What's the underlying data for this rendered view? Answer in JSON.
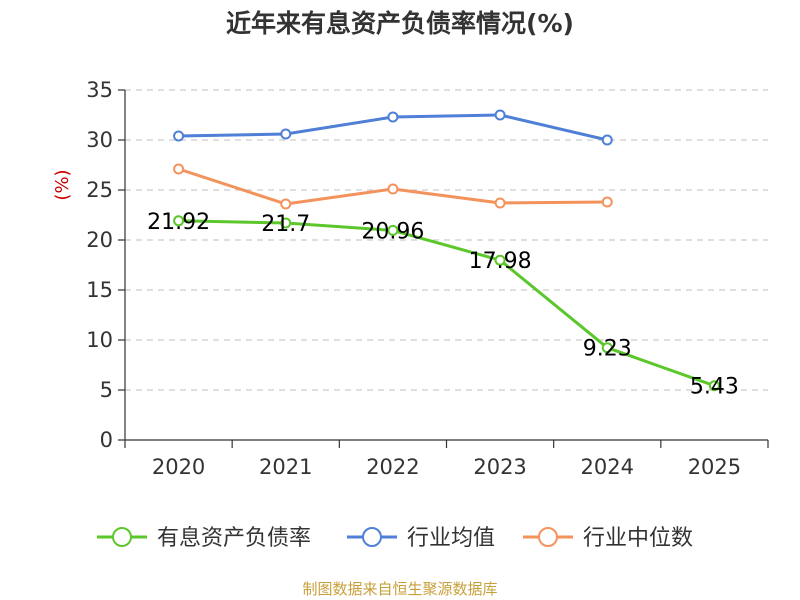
{
  "chart_data": {
    "type": "line",
    "title": "近年来有息资产负债率情况(%)",
    "ylabel": "(%)",
    "xlabel": "",
    "categories": [
      "2020",
      "2021",
      "2022",
      "2023",
      "2024",
      "2025"
    ],
    "ylim": [
      0,
      35
    ],
    "yticks": [
      0,
      5,
      10,
      15,
      20,
      25,
      30,
      35
    ],
    "grid": true,
    "legend_position": "bottom",
    "series": [
      {
        "name": "有息资产负债率",
        "color": "#5cc72b",
        "values": [
          21.92,
          21.7,
          20.96,
          17.98,
          9.23,
          5.43
        ],
        "show_labels": true
      },
      {
        "name": "行业均值",
        "color": "#4f7fd6",
        "values": [
          30.4,
          30.6,
          32.3,
          32.5,
          30.0,
          null
        ],
        "show_labels": false
      },
      {
        "name": "行业中位数",
        "color": "#f4925c",
        "values": [
          27.1,
          23.6,
          25.1,
          23.7,
          23.8,
          null
        ],
        "show_labels": false
      }
    ],
    "data_labels": [
      "21.92",
      "21.7",
      "20.96",
      "17.98",
      "9.23",
      "5.43"
    ]
  },
  "source_text": "制图数据来自恒生聚源数据库",
  "colors": {
    "source": "#c8a03a",
    "ylabel": "#cc0000",
    "axis": "#333333",
    "grid": "#cccccc"
  }
}
